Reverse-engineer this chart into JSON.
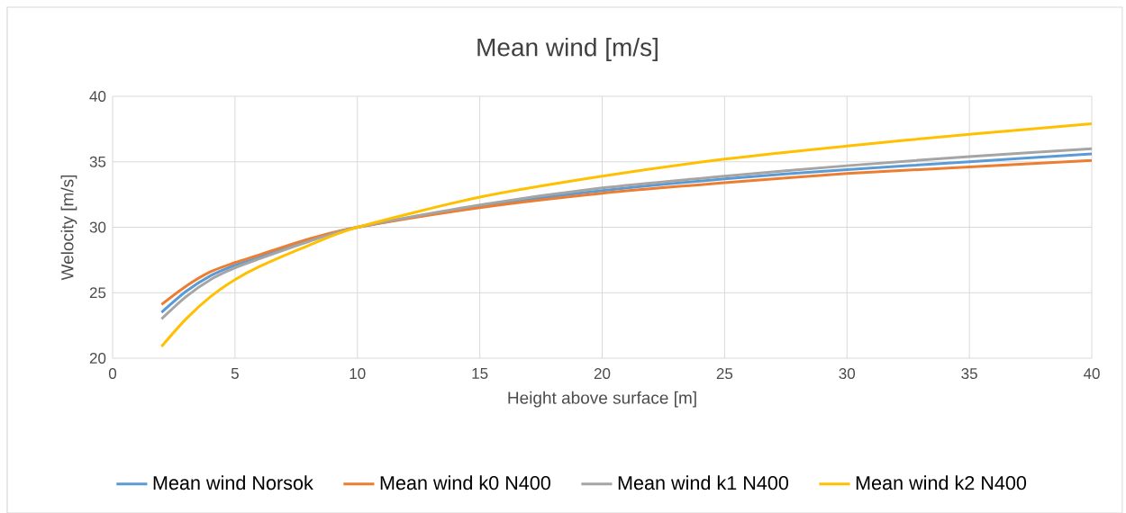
{
  "chart_data": {
    "type": "line",
    "title": "Mean wind [m/s]",
    "xlabel": "Height above surface [m]",
    "ylabel": "Welocity [m/s]",
    "x": [
      2,
      3,
      4,
      5,
      6,
      8,
      10,
      15,
      20,
      25,
      30,
      35,
      40
    ],
    "series": [
      {
        "name": "Mean wind Norsok",
        "color": "#5b9bd5",
        "values": [
          23.5,
          25.1,
          26.3,
          27.1,
          27.7,
          29.0,
          30,
          31.6,
          32.8,
          33.7,
          34.4,
          35.0,
          35.6
        ]
      },
      {
        "name": "Mean wind k0 N400",
        "color": "#ed7d31",
        "values": [
          24.1,
          25.5,
          26.6,
          27.3,
          27.9,
          29.1,
          30,
          31.5,
          32.6,
          33.4,
          34.1,
          34.6,
          35.1
        ]
      },
      {
        "name": "Mean wind k1 N400",
        "color": "#a5a5a5",
        "values": [
          23.0,
          24.7,
          26.0,
          26.9,
          27.6,
          28.9,
          30,
          31.7,
          33.0,
          33.9,
          34.7,
          35.4,
          36.0
        ]
      },
      {
        "name": "Mean wind k2 N400",
        "color": "#ffc000",
        "values": [
          20.9,
          23.0,
          24.7,
          26.0,
          27.0,
          28.6,
          30,
          32.3,
          33.9,
          35.2,
          36.2,
          37.1,
          37.9
        ]
      }
    ],
    "xlim": [
      0,
      40
    ],
    "xticks": [
      0,
      5,
      10,
      15,
      20,
      25,
      30,
      35,
      40
    ],
    "ylim": [
      20,
      40
    ],
    "yticks": [
      20,
      25,
      30,
      35,
      40
    ],
    "grid": true,
    "legend": "bottom",
    "line_style": "solid"
  }
}
